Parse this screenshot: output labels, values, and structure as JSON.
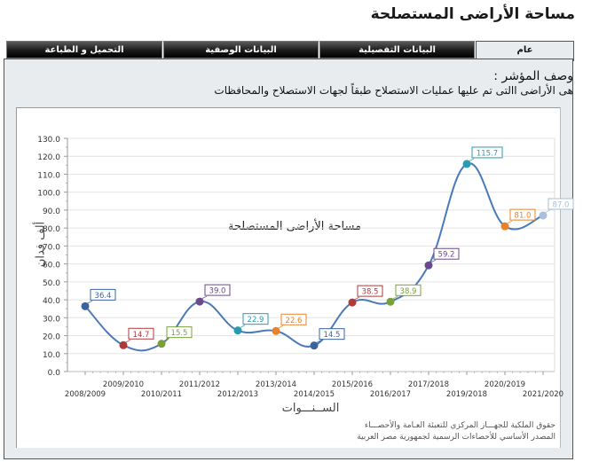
{
  "page": {
    "title": "مساحة الأراضى المستصلحة"
  },
  "tabs": [
    {
      "label": "عام",
      "active": true
    },
    {
      "label": "البيانات التفصيلية",
      "active": false
    },
    {
      "label": "البيانات الوصفية",
      "active": false
    },
    {
      "label": "التحميل و الطباعة",
      "active": false
    }
  ],
  "indicator": {
    "label": "وصف المؤشر :",
    "description": "هى الأراضى االتى تم عليها عمليات الاستصلاح طبقاً لجهات الاستصلاح والمحافظات"
  },
  "credits": {
    "line1": "حقوق الملكية للجهـــاز المركزي للتعبئة العـامة والأحصـــاء",
    "line2": "المصدر الأساسي للأحصاءات الرسمية لجمهورية مصر العربية"
  },
  "chart_data": {
    "type": "line",
    "title": "مساحة الأراضى المستصلحة",
    "xlabel": "الســنـــوات",
    "ylabel": "ألف فدان",
    "ylim": [
      0,
      130
    ],
    "yticks": [
      "0.0",
      "10.0",
      "20.0",
      "30.0",
      "40.0",
      "50.0",
      "60.0",
      "70.0",
      "80.0",
      "90.0",
      "100.0",
      "110.0",
      "120.0",
      "130.0"
    ],
    "grid": true,
    "legend": "none",
    "categories": [
      "2008/2009",
      "2009/2010",
      "2010/2011",
      "2011/2012",
      "2012/2013",
      "2013/2014",
      "2014/2015",
      "2015/2016",
      "2016/2017",
      "2017/2018",
      "2019/2018",
      "2020/2019",
      "2021/2020"
    ],
    "values": [
      36.4,
      14.7,
      15.5,
      39.0,
      22.9,
      22.6,
      14.5,
      38.5,
      38.9,
      59.2,
      115.7,
      81.0,
      87.0
    ],
    "labels": [
      "36.4",
      "14.7",
      "15.5",
      "39.0",
      "22.9",
      "22.6",
      "14.5",
      "38.5",
      "38.9",
      "59.2",
      "115.7",
      "81.0",
      "87.0"
    ],
    "point_colors": [
      "#3a64a0",
      "#b03a3a",
      "#7aa03a",
      "#6a4a8a",
      "#2a9ab0",
      "#e8822a",
      "#3a64a0",
      "#b03a3a",
      "#7aa03a",
      "#6a4a8a",
      "#2a9ab0",
      "#e8822a",
      "#a8bfdc"
    ],
    "line_color": "#4a7ab8"
  }
}
